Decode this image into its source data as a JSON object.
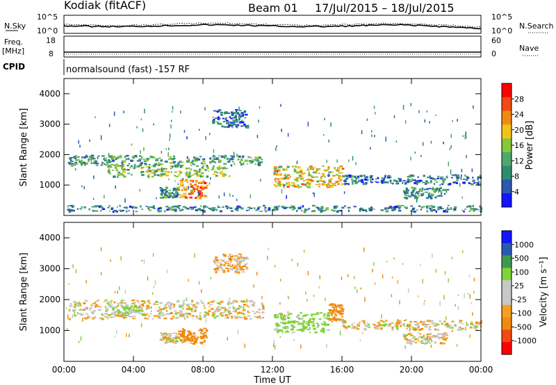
{
  "header": {
    "station": "Kodiak (fitACF)",
    "beam": "Beam 01",
    "date_range": "17/Jul/2015 – 18/Jul/2015"
  },
  "noise_panel": {
    "left_label": "N.Sky",
    "right_label": "N.Search",
    "ticks_left": [
      "10^5",
      "10^0"
    ],
    "ticks_right": [
      "10^5",
      "10^0"
    ]
  },
  "freq_panel": {
    "left_label_1": "Freq.",
    "left_label_2": "[MHz]",
    "right_label": "Nave",
    "ticks_left": [
      "18",
      "8"
    ],
    "ticks_right": [
      "60",
      "0"
    ]
  },
  "cpid": {
    "label": "CPID",
    "text": "normalsound (fast) -157 RF"
  },
  "colors": {
    "power_scale": [
      "#1414ff",
      "#2b59b0",
      "#2e8c6e",
      "#4fa86a",
      "#88c63a",
      "#f2c41a",
      "#f08a10",
      "#f24a10",
      "#ff0000"
    ],
    "velocity_scale": [
      "#ff0000",
      "#f24a10",
      "#f08a10",
      "#f5a020",
      "#c8c8c8",
      "#c8c8c8",
      "#7ed33a",
      "#3f9a50",
      "#2b59b0",
      "#1414ff"
    ]
  },
  "chart_data": [
    {
      "type": "heatmap",
      "title": "",
      "xlabel": "Time UT",
      "ylabel": "Slant Range [km]",
      "xlim_hours": [
        0,
        24
      ],
      "ylim_km": [
        0,
        4500
      ],
      "x_ticks": [
        "00:00",
        "04:00",
        "08:00",
        "12:00",
        "16:00",
        "20:00",
        "00:00"
      ],
      "y_ticks": [
        "1000",
        "2000",
        "3000",
        "4000"
      ],
      "colorbar": {
        "label": "Power [dB]",
        "range": [
          0,
          30
        ],
        "ticks": [
          "4",
          "8",
          "12",
          "16",
          "20",
          "24",
          "28"
        ]
      },
      "regions": [
        {
          "t0": 0.2,
          "t1": 11.5,
          "r0": 1650,
          "r1": 2000,
          "value": 10
        },
        {
          "t0": 2.5,
          "t1": 9.5,
          "r0": 1300,
          "r1": 1650,
          "value": 14
        },
        {
          "t0": 6.5,
          "t1": 8.2,
          "r0": 600,
          "r1": 1200,
          "value": 22
        },
        {
          "t0": 5.5,
          "t1": 6.5,
          "r0": 600,
          "r1": 950,
          "value": 9
        },
        {
          "t0": 12.0,
          "t1": 16.0,
          "r0": 950,
          "r1": 1650,
          "value": 18
        },
        {
          "t0": 16.0,
          "t1": 24.0,
          "r0": 1050,
          "r1": 1350,
          "value": 7
        },
        {
          "t0": 19.5,
          "t1": 22.0,
          "r0": 600,
          "r1": 950,
          "value": 9
        },
        {
          "t0": 8.5,
          "t1": 10.5,
          "r0": 2900,
          "r1": 3500,
          "value": 6
        },
        {
          "t0": 0.0,
          "t1": 24.0,
          "r0": 150,
          "r1": 350,
          "value": 8
        }
      ]
    },
    {
      "type": "heatmap",
      "title": "",
      "xlabel": "Time UT",
      "ylabel": "Slant Range [km]",
      "xlim_hours": [
        0,
        24
      ],
      "ylim_km": [
        0,
        4500
      ],
      "x_ticks": [
        "00:00",
        "04:00",
        "08:00",
        "12:00",
        "16:00",
        "20:00",
        "00:00"
      ],
      "y_ticks": [
        "1000",
        "2000",
        "3000",
        "4000"
      ],
      "colorbar": {
        "label": "Velocity [m s⁻¹]",
        "range": [
          -1200,
          1200
        ],
        "ticks": [
          "1000",
          "500",
          "100",
          "25",
          "-25",
          "-100",
          "-500",
          "-1000"
        ]
      },
      "regions": [
        {
          "t0": 0.2,
          "t1": 11.5,
          "r0": 1400,
          "r1": 2000,
          "value": 0
        },
        {
          "t0": 2.5,
          "t1": 4.5,
          "r0": 1500,
          "r1": 1850,
          "value": 120
        },
        {
          "t0": 6.5,
          "t1": 8.2,
          "r0": 600,
          "r1": 1100,
          "value": -300
        },
        {
          "t0": 5.5,
          "t1": 6.5,
          "r0": 600,
          "r1": 950,
          "value": 0
        },
        {
          "t0": 12.0,
          "t1": 15.2,
          "r0": 950,
          "r1": 1600,
          "value": 200
        },
        {
          "t0": 15.2,
          "t1": 16.0,
          "r0": 1300,
          "r1": 1900,
          "value": -200
        },
        {
          "t0": 16.0,
          "t1": 24.0,
          "r0": 1050,
          "r1": 1350,
          "value": 0
        },
        {
          "t0": 19.5,
          "t1": 22.0,
          "r0": 600,
          "r1": 950,
          "value": 0
        },
        {
          "t0": 8.5,
          "t1": 10.5,
          "r0": 2900,
          "r1": 3500,
          "value": -40
        }
      ]
    }
  ]
}
